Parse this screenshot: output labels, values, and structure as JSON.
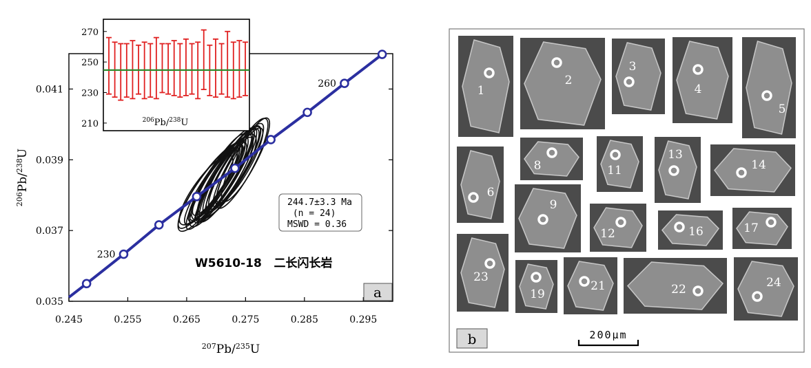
{
  "chart_data": [
    {
      "type": "scatter",
      "subtype": "concordia",
      "panel_label": "a",
      "xlabel_parts": {
        "sup1": "207",
        "base1": "Pb/",
        "sup2": "235",
        "base2": "U"
      },
      "ylabel_parts": {
        "sup1": "206",
        "base1": "Pb/",
        "sup2": "238",
        "base2": "U"
      },
      "xlim": [
        0.245,
        0.3
      ],
      "ylim": [
        0.035,
        0.042
      ],
      "x_ticks": [
        "0.245",
        "0.255",
        "0.265",
        "0.275",
        "0.285",
        "0.295"
      ],
      "x_tick_values": [
        0.245,
        0.255,
        0.265,
        0.275,
        0.285,
        0.295
      ],
      "y_ticks": [
        "0.035",
        "0.037",
        "0.039",
        "0.041"
      ],
      "y_tick_values": [
        0.035,
        0.037,
        0.039,
        0.041
      ],
      "concordia_color": "#2b2fa0",
      "concordia_markers": [
        {
          "x": 0.248,
          "y": 0.0355
        },
        {
          "x": 0.2543,
          "y": 0.03633,
          "label": "230"
        },
        {
          "x": 0.2603,
          "y": 0.03716
        },
        {
          "x": 0.2667,
          "y": 0.03796
        },
        {
          "x": 0.2732,
          "y": 0.03876
        },
        {
          "x": 0.2793,
          "y": 0.03957
        },
        {
          "x": 0.2855,
          "y": 0.04034
        },
        {
          "x": 0.2918,
          "y": 0.04116,
          "label": "260"
        },
        {
          "x": 0.2982,
          "y": 0.04198
        }
      ],
      "ellipses": [
        {
          "cx": 0.2712,
          "cy": 0.03846,
          "rx": 0.0088,
          "ry": 0.00025,
          "angle": 58
        },
        {
          "cx": 0.2702,
          "cy": 0.0384,
          "rx": 0.008,
          "ry": 0.0003,
          "angle": 56
        },
        {
          "cx": 0.272,
          "cy": 0.03858,
          "rx": 0.0092,
          "ry": 0.00032,
          "angle": 60
        },
        {
          "cx": 0.2696,
          "cy": 0.0383,
          "rx": 0.0075,
          "ry": 0.00028,
          "angle": 57
        },
        {
          "cx": 0.2728,
          "cy": 0.0387,
          "rx": 0.0082,
          "ry": 0.0003,
          "angle": 59
        },
        {
          "cx": 0.269,
          "cy": 0.03822,
          "rx": 0.009,
          "ry": 0.00036,
          "angle": 55
        },
        {
          "cx": 0.2735,
          "cy": 0.0388,
          "rx": 0.0078,
          "ry": 0.00026,
          "angle": 61
        },
        {
          "cx": 0.2708,
          "cy": 0.03846,
          "rx": 0.0068,
          "ry": 0.00024,
          "angle": 58
        },
        {
          "cx": 0.2718,
          "cy": 0.03852,
          "rx": 0.0085,
          "ry": 0.00038,
          "angle": 57
        },
        {
          "cx": 0.27,
          "cy": 0.03838,
          "rx": 0.0094,
          "ry": 0.0003,
          "angle": 59
        },
        {
          "cx": 0.2744,
          "cy": 0.0389,
          "rx": 0.0086,
          "ry": 0.00033,
          "angle": 62
        },
        {
          "cx": 0.2683,
          "cy": 0.03815,
          "rx": 0.0072,
          "ry": 0.00034,
          "angle": 54
        },
        {
          "cx": 0.2725,
          "cy": 0.03862,
          "rx": 0.007,
          "ry": 0.00027,
          "angle": 60
        },
        {
          "cx": 0.271,
          "cy": 0.0385,
          "rx": 0.0098,
          "ry": 0.00035,
          "angle": 58
        },
        {
          "cx": 0.2695,
          "cy": 0.03832,
          "rx": 0.0083,
          "ry": 0.00029,
          "angle": 56
        },
        {
          "cx": 0.2731,
          "cy": 0.03872,
          "rx": 0.0091,
          "ry": 0.00031,
          "angle": 59
        },
        {
          "cx": 0.2705,
          "cy": 0.03842,
          "rx": 0.0079,
          "ry": 0.00037,
          "angle": 57
        },
        {
          "cx": 0.2716,
          "cy": 0.03856,
          "rx": 0.0074,
          "ry": 0.00026,
          "angle": 61
        },
        {
          "cx": 0.2688,
          "cy": 0.03826,
          "rx": 0.0087,
          "ry": 0.00032,
          "angle": 55
        },
        {
          "cx": 0.274,
          "cy": 0.03884,
          "rx": 0.0073,
          "ry": 0.00028,
          "angle": 60
        },
        {
          "cx": 0.2722,
          "cy": 0.0386,
          "rx": 0.0096,
          "ry": 0.00034,
          "angle": 58
        },
        {
          "cx": 0.2698,
          "cy": 0.03836,
          "rx": 0.0066,
          "ry": 0.00025,
          "angle": 57
        },
        {
          "cx": 0.2714,
          "cy": 0.03852,
          "rx": 0.0089,
          "ry": 0.00029,
          "angle": 59
        },
        {
          "cx": 0.275,
          "cy": 0.039,
          "rx": 0.008,
          "ry": 0.0003,
          "angle": 62
        }
      ],
      "result_box": [
        "244.7±3.3 Ma",
        " (n = 24)",
        "MSWD = 0.36"
      ],
      "sample_title": "W5610-18   二长闪长岩",
      "inset": {
        "type": "errorbar",
        "ylim": [
          205,
          278
        ],
        "y_ticks": [
          "270",
          "250",
          "230",
          "210"
        ],
        "y_tick_values": [
          270,
          250,
          230,
          210
        ],
        "label_parts": {
          "sup1": "206",
          "base1": "Pb/",
          "sup2": "238",
          "base2": "U"
        },
        "mean": 244.7,
        "mean_color": "#2e8b2e",
        "bar_color": "#e02020",
        "bars": [
          [
            229,
            266
          ],
          [
            227,
            263
          ],
          [
            225,
            262
          ],
          [
            227,
            262
          ],
          [
            226,
            264
          ],
          [
            229,
            261
          ],
          [
            226,
            263
          ],
          [
            227,
            262
          ],
          [
            226,
            266
          ],
          [
            230,
            262
          ],
          [
            229,
            262
          ],
          [
            228,
            264
          ],
          [
            227,
            262
          ],
          [
            228,
            265
          ],
          [
            229,
            262
          ],
          [
            226,
            263
          ],
          [
            232,
            271
          ],
          [
            228,
            261
          ],
          [
            227,
            265
          ],
          [
            229,
            262
          ],
          [
            227,
            270
          ],
          [
            226,
            263
          ],
          [
            227,
            264
          ],
          [
            228,
            263
          ]
        ]
      }
    }
  ],
  "panel_b": {
    "panel_label": "b",
    "scale_bar": "200μm",
    "grains": [
      "1",
      "2",
      "3",
      "4",
      "5",
      "6",
      "8",
      "11",
      "13",
      "14",
      "9",
      "12",
      "16",
      "17",
      "23",
      "19",
      "21",
      "22",
      "24"
    ]
  }
}
